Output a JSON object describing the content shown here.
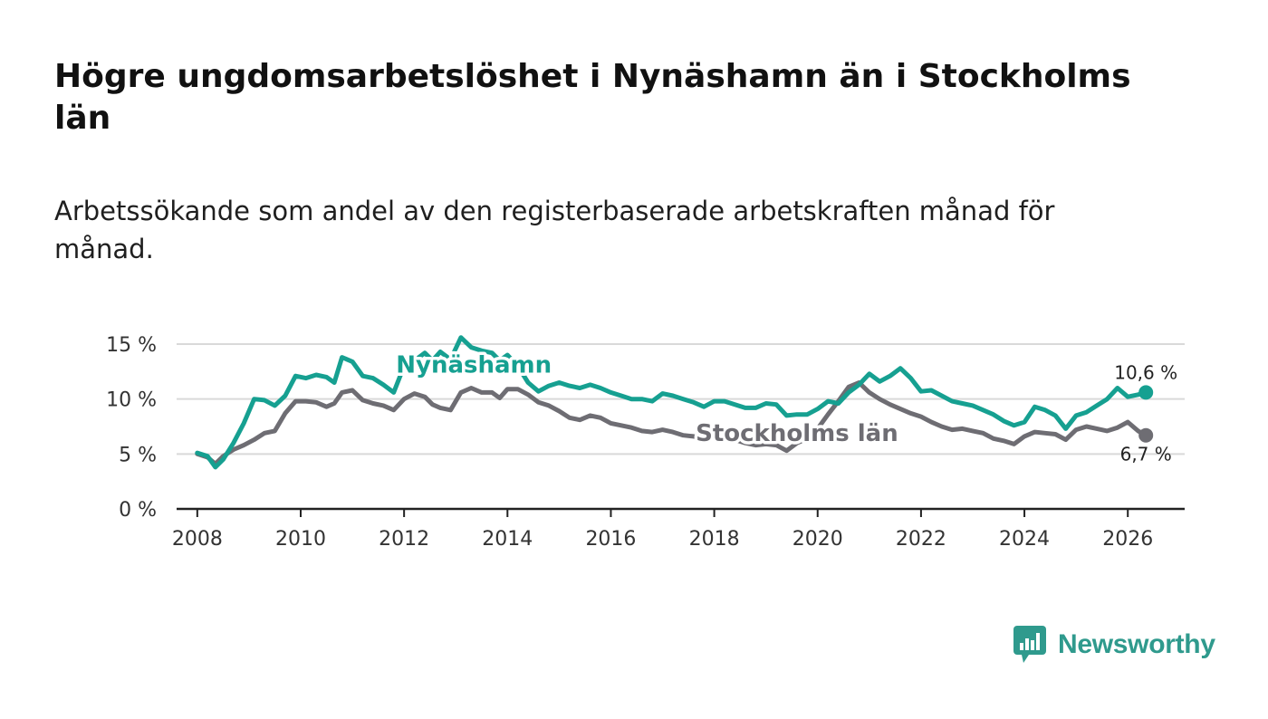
{
  "title": "Högre ungdomsarbetslöshet i Nynäshamn än i Stockholms län",
  "subtitle": "Arbetssökande som andel av den registerbaserade arbetskraften månad för månad.",
  "brand": {
    "name": "Newsworthy",
    "icon": "bar-chart-speech-bubble-icon",
    "color": "#2f9a8d"
  },
  "colors": {
    "nynashamn": "#16a091",
    "stockholm": "#6e6d73",
    "grid": "#d9d9d9",
    "axis": "#222222"
  },
  "chart_data": {
    "type": "line",
    "title": "Högre ungdomsarbetslöshet i Nynäshamn än i Stockholms län",
    "xlabel": "",
    "ylabel": "",
    "xlim": [
      2007.6,
      2027.1
    ],
    "ylim": [
      0,
      15
    ],
    "x_ticks": [
      2008,
      2010,
      2012,
      2014,
      2016,
      2018,
      2020,
      2022,
      2024,
      2026
    ],
    "x_tick_labels": [
      "2008",
      "2010",
      "2012",
      "2014",
      "2016",
      "2018",
      "2020",
      "2022",
      "2024",
      "2026"
    ],
    "y_ticks": [
      0,
      5,
      10,
      15
    ],
    "y_tick_labels": [
      "0 %",
      "5 %",
      "10 %",
      "15 %"
    ],
    "series": [
      {
        "name": "Nynäshamn",
        "inline_label": "Nynäshamn",
        "end_label": "10,6 %",
        "end_value": 10.6,
        "points": [
          [
            2008.0,
            5.1
          ],
          [
            2008.2,
            4.8
          ],
          [
            2008.35,
            3.8
          ],
          [
            2008.5,
            4.5
          ],
          [
            2008.7,
            6.0
          ],
          [
            2008.9,
            7.8
          ],
          [
            2009.1,
            10.0
          ],
          [
            2009.3,
            9.9
          ],
          [
            2009.5,
            9.4
          ],
          [
            2009.7,
            10.3
          ],
          [
            2009.9,
            12.1
          ],
          [
            2010.1,
            11.9
          ],
          [
            2010.3,
            12.2
          ],
          [
            2010.5,
            12.0
          ],
          [
            2010.65,
            11.5
          ],
          [
            2010.8,
            13.8
          ],
          [
            2011.0,
            13.4
          ],
          [
            2011.2,
            12.1
          ],
          [
            2011.4,
            11.9
          ],
          [
            2011.6,
            11.3
          ],
          [
            2011.8,
            10.6
          ],
          [
            2012.0,
            13.0
          ],
          [
            2012.2,
            13.5
          ],
          [
            2012.4,
            14.2
          ],
          [
            2012.55,
            13.5
          ],
          [
            2012.7,
            14.3
          ],
          [
            2012.9,
            13.6
          ],
          [
            2013.1,
            15.6
          ],
          [
            2013.3,
            14.7
          ],
          [
            2013.5,
            14.4
          ],
          [
            2013.7,
            14.2
          ],
          [
            2013.85,
            13.5
          ],
          [
            2014.0,
            14.0
          ],
          [
            2014.2,
            13.0
          ],
          [
            2014.4,
            11.5
          ],
          [
            2014.6,
            10.7
          ],
          [
            2014.8,
            11.2
          ],
          [
            2015.0,
            11.5
          ],
          [
            2015.2,
            11.2
          ],
          [
            2015.4,
            11.0
          ],
          [
            2015.6,
            11.3
          ],
          [
            2015.8,
            11.0
          ],
          [
            2016.0,
            10.6
          ],
          [
            2016.2,
            10.3
          ],
          [
            2016.4,
            10.0
          ],
          [
            2016.6,
            10.0
          ],
          [
            2016.8,
            9.8
          ],
          [
            2017.0,
            10.5
          ],
          [
            2017.2,
            10.3
          ],
          [
            2017.4,
            10.0
          ],
          [
            2017.6,
            9.7
          ],
          [
            2017.8,
            9.3
          ],
          [
            2018.0,
            9.8
          ],
          [
            2018.2,
            9.8
          ],
          [
            2018.4,
            9.5
          ],
          [
            2018.6,
            9.2
          ],
          [
            2018.8,
            9.2
          ],
          [
            2019.0,
            9.6
          ],
          [
            2019.2,
            9.5
          ],
          [
            2019.4,
            8.5
          ],
          [
            2019.6,
            8.6
          ],
          [
            2019.8,
            8.6
          ],
          [
            2020.0,
            9.1
          ],
          [
            2020.2,
            9.8
          ],
          [
            2020.4,
            9.6
          ],
          [
            2020.6,
            10.6
          ],
          [
            2020.8,
            11.3
          ],
          [
            2021.0,
            12.3
          ],
          [
            2021.2,
            11.6
          ],
          [
            2021.4,
            12.1
          ],
          [
            2021.6,
            12.8
          ],
          [
            2021.8,
            11.9
          ],
          [
            2022.0,
            10.7
          ],
          [
            2022.2,
            10.8
          ],
          [
            2022.4,
            10.3
          ],
          [
            2022.6,
            9.8
          ],
          [
            2022.8,
            9.6
          ],
          [
            2023.0,
            9.4
          ],
          [
            2023.2,
            9.0
          ],
          [
            2023.4,
            8.6
          ],
          [
            2023.6,
            8.0
          ],
          [
            2023.8,
            7.6
          ],
          [
            2024.0,
            7.9
          ],
          [
            2024.2,
            9.3
          ],
          [
            2024.4,
            9.0
          ],
          [
            2024.6,
            8.5
          ],
          [
            2024.8,
            7.3
          ],
          [
            2025.0,
            8.5
          ],
          [
            2025.2,
            8.8
          ],
          [
            2025.4,
            9.4
          ],
          [
            2025.6,
            10.0
          ],
          [
            2025.8,
            11.0
          ],
          [
            2026.0,
            10.2
          ],
          [
            2026.2,
            10.4
          ],
          [
            2026.35,
            10.6
          ]
        ]
      },
      {
        "name": "Stockholms län",
        "inline_label": "Stockholms län",
        "end_label": "6,7 %",
        "end_value": 6.7,
        "points": [
          [
            2008.0,
            5.0
          ],
          [
            2008.2,
            4.7
          ],
          [
            2008.35,
            4.1
          ],
          [
            2008.5,
            4.8
          ],
          [
            2008.7,
            5.4
          ],
          [
            2008.9,
            5.8
          ],
          [
            2009.1,
            6.3
          ],
          [
            2009.3,
            6.9
          ],
          [
            2009.5,
            7.1
          ],
          [
            2009.7,
            8.7
          ],
          [
            2009.9,
            9.8
          ],
          [
            2010.1,
            9.8
          ],
          [
            2010.3,
            9.7
          ],
          [
            2010.5,
            9.3
          ],
          [
            2010.65,
            9.6
          ],
          [
            2010.8,
            10.6
          ],
          [
            2011.0,
            10.8
          ],
          [
            2011.2,
            9.9
          ],
          [
            2011.4,
            9.6
          ],
          [
            2011.6,
            9.4
          ],
          [
            2011.8,
            9.0
          ],
          [
            2012.0,
            10.0
          ],
          [
            2012.2,
            10.5
          ],
          [
            2012.4,
            10.2
          ],
          [
            2012.55,
            9.5
          ],
          [
            2012.7,
            9.2
          ],
          [
            2012.9,
            9.0
          ],
          [
            2013.1,
            10.6
          ],
          [
            2013.3,
            11.0
          ],
          [
            2013.5,
            10.6
          ],
          [
            2013.7,
            10.6
          ],
          [
            2013.85,
            10.1
          ],
          [
            2014.0,
            10.9
          ],
          [
            2014.2,
            10.9
          ],
          [
            2014.4,
            10.4
          ],
          [
            2014.6,
            9.7
          ],
          [
            2014.8,
            9.4
          ],
          [
            2015.0,
            8.9
          ],
          [
            2015.2,
            8.3
          ],
          [
            2015.4,
            8.1
          ],
          [
            2015.6,
            8.5
          ],
          [
            2015.8,
            8.3
          ],
          [
            2016.0,
            7.8
          ],
          [
            2016.2,
            7.6
          ],
          [
            2016.4,
            7.4
          ],
          [
            2016.6,
            7.1
          ],
          [
            2016.8,
            7.0
          ],
          [
            2017.0,
            7.2
          ],
          [
            2017.2,
            7.0
          ],
          [
            2017.4,
            6.7
          ],
          [
            2017.6,
            6.6
          ],
          [
            2017.8,
            6.4
          ],
          [
            2018.0,
            6.6
          ],
          [
            2018.2,
            6.5
          ],
          [
            2018.4,
            6.3
          ],
          [
            2018.6,
            6.0
          ],
          [
            2018.8,
            5.8
          ],
          [
            2019.0,
            5.9
          ],
          [
            2019.2,
            5.8
          ],
          [
            2019.4,
            5.3
          ],
          [
            2019.6,
            6.0
          ],
          [
            2019.8,
            6.4
          ],
          [
            2020.0,
            7.3
          ],
          [
            2020.2,
            8.6
          ],
          [
            2020.4,
            9.8
          ],
          [
            2020.6,
            11.1
          ],
          [
            2020.8,
            11.5
          ],
          [
            2021.0,
            10.6
          ],
          [
            2021.2,
            10.0
          ],
          [
            2021.4,
            9.5
          ],
          [
            2021.6,
            9.1
          ],
          [
            2021.8,
            8.7
          ],
          [
            2022.0,
            8.4
          ],
          [
            2022.2,
            7.9
          ],
          [
            2022.4,
            7.5
          ],
          [
            2022.6,
            7.2
          ],
          [
            2022.8,
            7.3
          ],
          [
            2023.0,
            7.1
          ],
          [
            2023.2,
            6.9
          ],
          [
            2023.4,
            6.4
          ],
          [
            2023.6,
            6.2
          ],
          [
            2023.8,
            5.9
          ],
          [
            2024.0,
            6.6
          ],
          [
            2024.2,
            7.0
          ],
          [
            2024.4,
            6.9
          ],
          [
            2024.6,
            6.8
          ],
          [
            2024.8,
            6.3
          ],
          [
            2025.0,
            7.2
          ],
          [
            2025.2,
            7.5
          ],
          [
            2025.4,
            7.3
          ],
          [
            2025.6,
            7.1
          ],
          [
            2025.8,
            7.4
          ],
          [
            2026.0,
            7.9
          ],
          [
            2026.2,
            7.1
          ],
          [
            2026.35,
            6.7
          ]
        ]
      }
    ]
  }
}
